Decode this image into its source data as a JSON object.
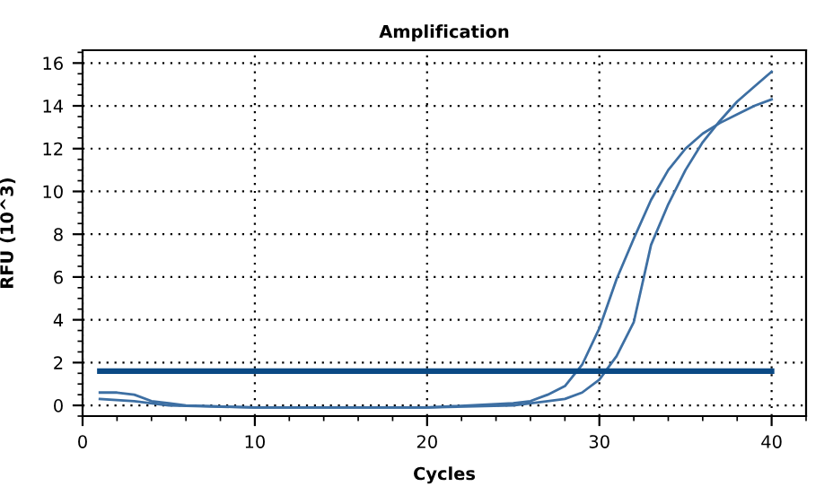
{
  "chart_data": {
    "type": "line",
    "title": "Amplification",
    "xlabel": "Cycles",
    "ylabel": "RFU (10^3)",
    "xlim": [
      0,
      42
    ],
    "xticks": [
      0,
      10,
      20,
      30,
      40
    ],
    "ylim": [
      -0.5,
      16.6
    ],
    "yticks": [
      0,
      2,
      4,
      6,
      8,
      10,
      12,
      14,
      16
    ],
    "grid": true,
    "line_style": "solid",
    "marker": "none",
    "series": [
      {
        "color": "#3d6fa3",
        "x": [
          1,
          2,
          3,
          4,
          5,
          6,
          10,
          15,
          20,
          25,
          26,
          27,
          28,
          29,
          30,
          31,
          32,
          33,
          34,
          35,
          36,
          37,
          38,
          39,
          40
        ],
        "values": [
          0.6,
          0.6,
          0.5,
          0.2,
          0.1,
          0.0,
          -0.1,
          -0.1,
          -0.1,
          0.1,
          0.2,
          0.5,
          0.9,
          1.9,
          3.6,
          5.9,
          7.8,
          9.6,
          11.0,
          12.0,
          12.7,
          13.2,
          13.6,
          14.0,
          14.3
        ]
      },
      {
        "color": "#3d6fa3",
        "x": [
          1,
          3,
          5,
          10,
          15,
          20,
          25,
          27,
          28,
          29,
          30,
          31,
          32,
          33,
          34,
          35,
          36,
          37,
          38,
          39,
          40
        ],
        "values": [
          0.3,
          0.2,
          0.0,
          -0.1,
          -0.1,
          -0.1,
          0.0,
          0.2,
          0.3,
          0.6,
          1.2,
          2.3,
          3.9,
          7.5,
          9.4,
          11.0,
          12.3,
          13.3,
          14.2,
          14.9,
          15.6
        ]
      },
      {
        "color": "#0b4a85",
        "x": [
          1,
          40
        ],
        "values": [
          1.6,
          1.6
        ]
      }
    ]
  }
}
